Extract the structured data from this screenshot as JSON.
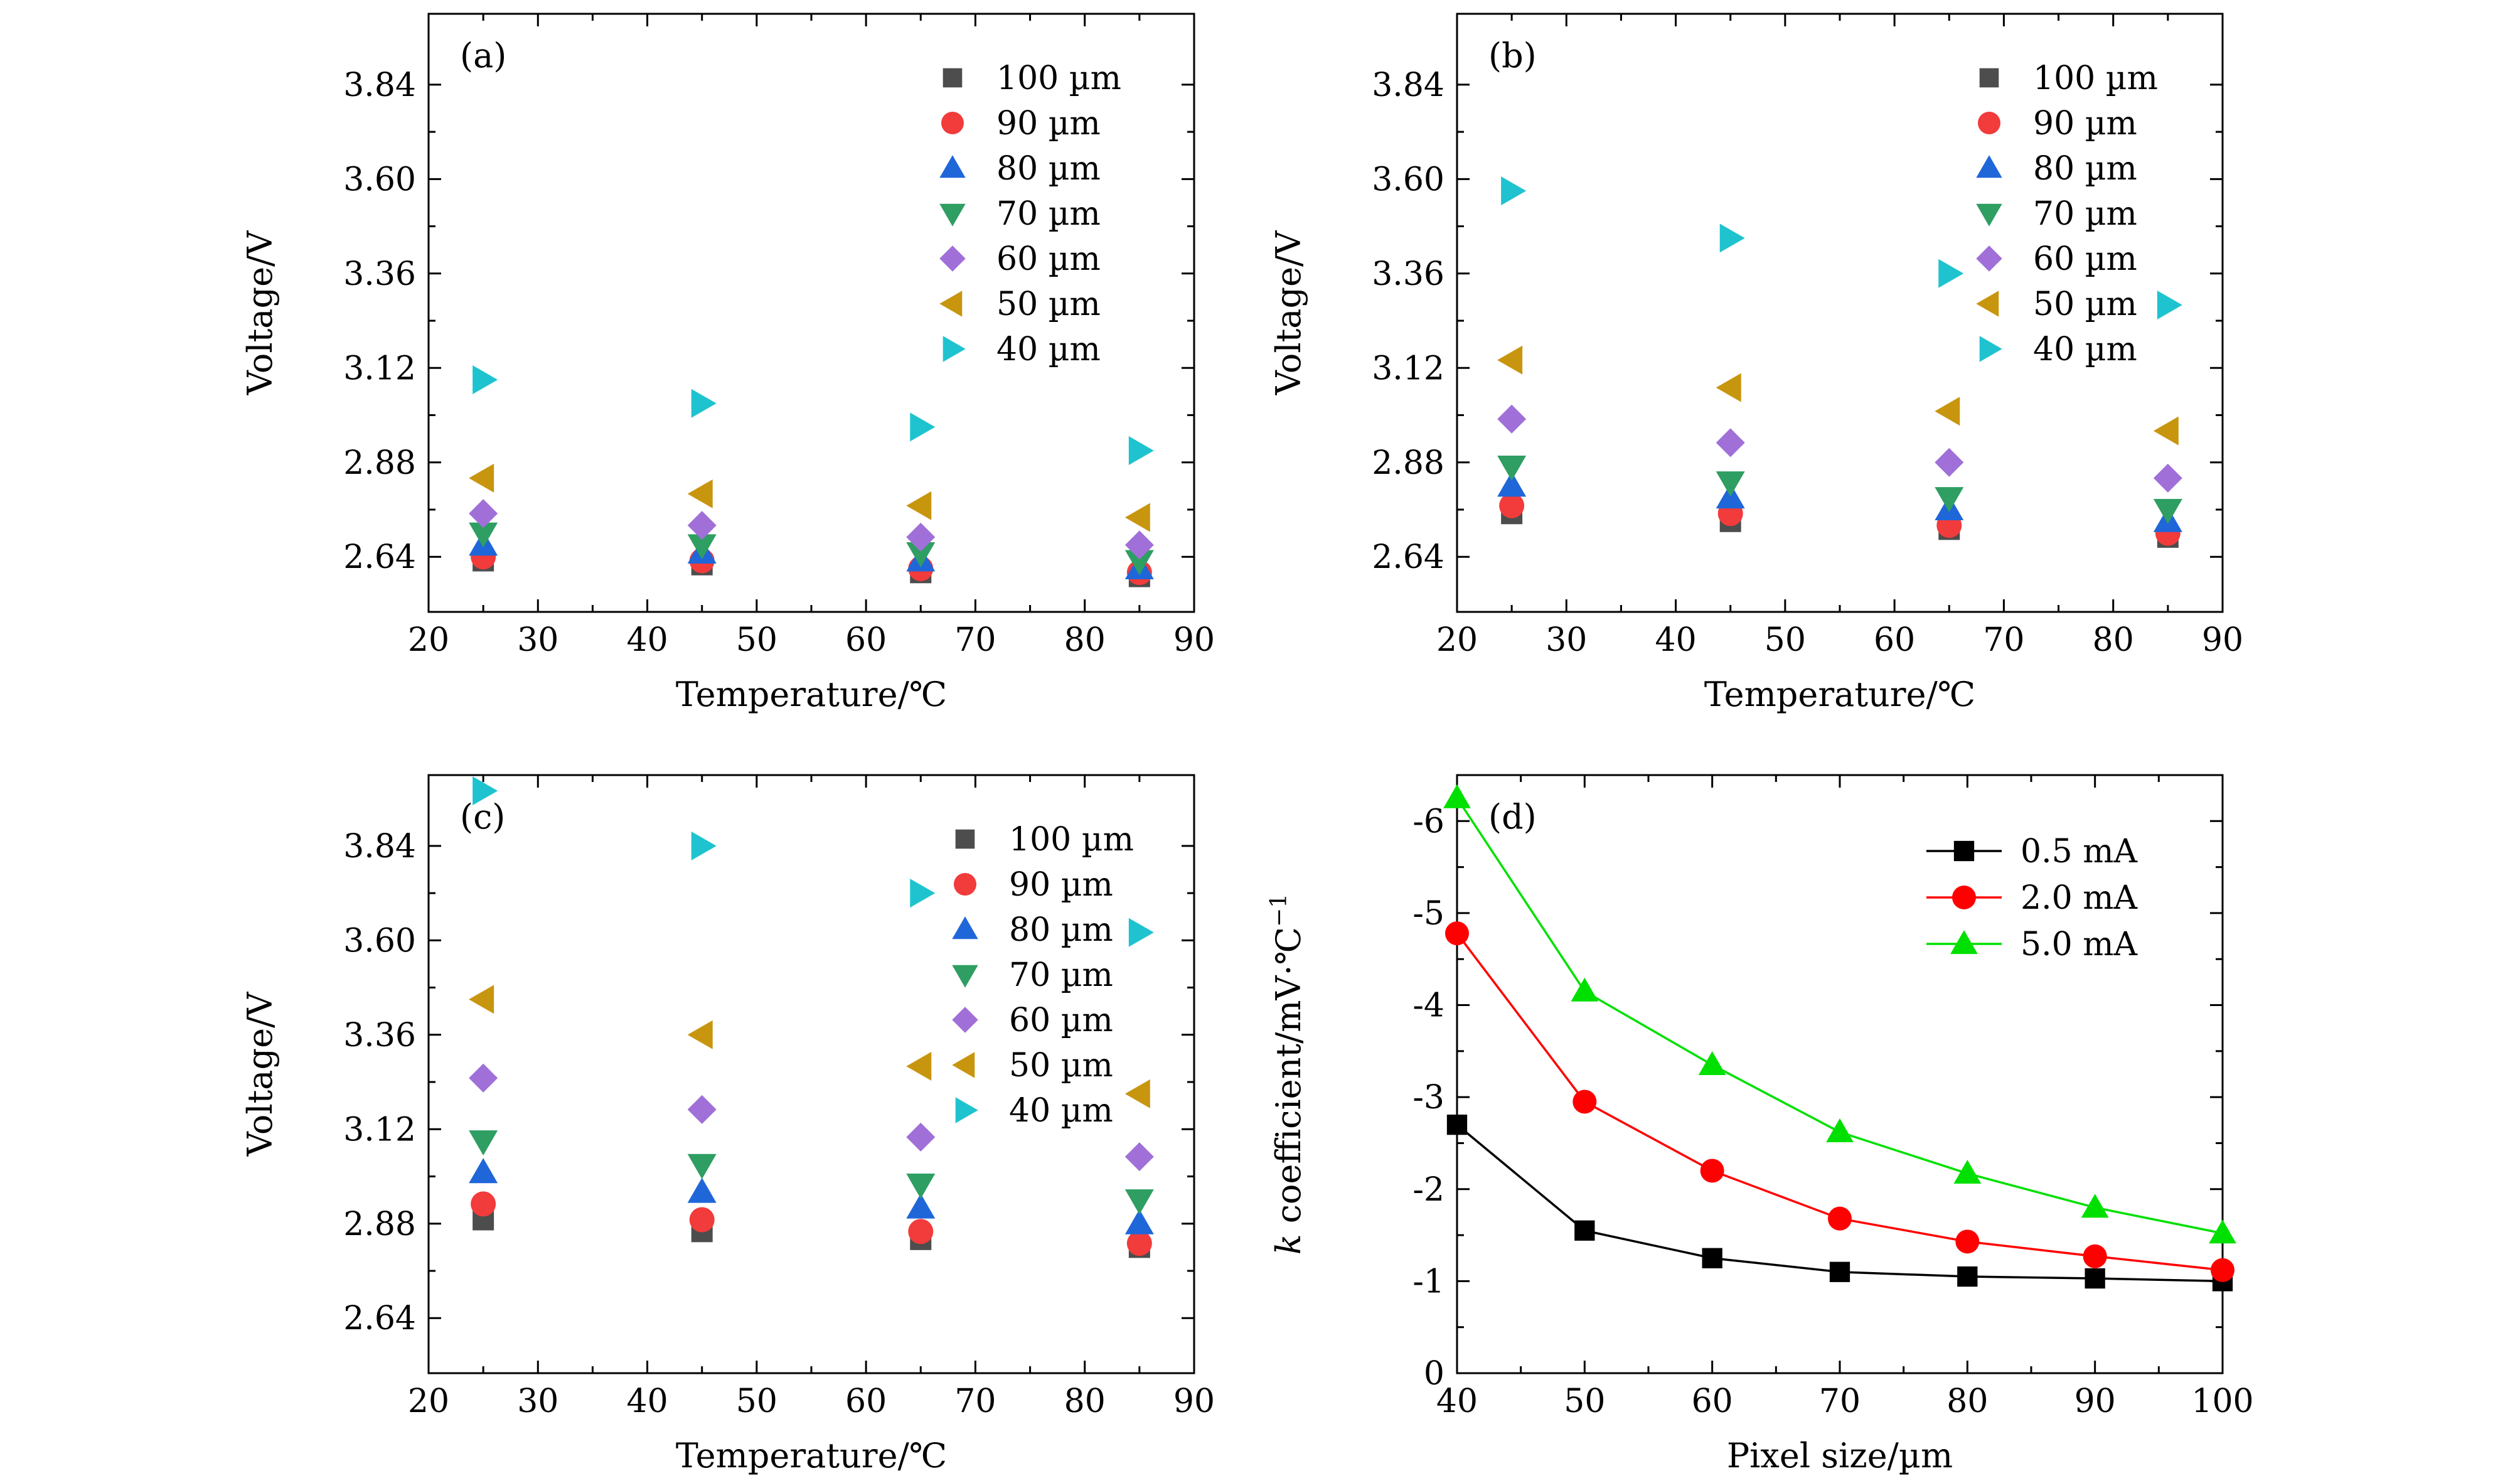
{
  "chart_data": [
    {
      "type": "scatter",
      "panel_label": "(a)",
      "xlabel": "Temperature/℃",
      "ylabel": "Voltage/V",
      "xlim": [
        20,
        90
      ],
      "ylim": [
        2.5,
        4.02
      ],
      "xticks": [
        20,
        30,
        40,
        50,
        60,
        70,
        80,
        90
      ],
      "yticks": [
        2.64,
        2.88,
        3.12,
        3.36,
        3.6,
        3.84
      ],
      "legend_position": "top-right",
      "series": [
        {
          "name": "100 µm",
          "marker": "square",
          "color": "#4d4d4d",
          "x": [
            25,
            45,
            65,
            85
          ],
          "y": [
            2.63,
            2.62,
            2.6,
            2.59
          ]
        },
        {
          "name": "90 µm",
          "marker": "circle",
          "color": "#f23b3b",
          "x": [
            25,
            45,
            65,
            85
          ],
          "y": [
            2.64,
            2.63,
            2.61,
            2.6
          ]
        },
        {
          "name": "80 µm",
          "marker": "triangle-up",
          "color": "#1f66d9",
          "x": [
            25,
            45,
            65,
            85
          ],
          "y": [
            2.67,
            2.65,
            2.63,
            2.61
          ]
        },
        {
          "name": "70 µm",
          "marker": "triangle-down",
          "color": "#2e9e62",
          "x": [
            25,
            45,
            65,
            85
          ],
          "y": [
            2.7,
            2.67,
            2.65,
            2.63
          ]
        },
        {
          "name": "60 µm",
          "marker": "diamond",
          "color": "#a070d8",
          "x": [
            25,
            45,
            65,
            85
          ],
          "y": [
            2.75,
            2.72,
            2.69,
            2.67
          ]
        },
        {
          "name": "50 µm",
          "marker": "triangle-left",
          "color": "#c8950e",
          "x": [
            25,
            45,
            65,
            85
          ],
          "y": [
            2.84,
            2.8,
            2.77,
            2.74
          ]
        },
        {
          "name": "40 µm",
          "marker": "triangle-right",
          "color": "#1fc3cf",
          "x": [
            25,
            45,
            65,
            85
          ],
          "y": [
            3.09,
            3.03,
            2.97,
            2.91
          ]
        }
      ]
    },
    {
      "type": "scatter",
      "panel_label": "(b)",
      "xlabel": "Temperature/℃",
      "ylabel": "Voltage/V",
      "xlim": [
        20,
        90
      ],
      "ylim": [
        2.5,
        4.02
      ],
      "xticks": [
        20,
        30,
        40,
        50,
        60,
        70,
        80,
        90
      ],
      "yticks": [
        2.64,
        2.88,
        3.12,
        3.36,
        3.6,
        3.84
      ],
      "legend_position": "top-right",
      "series": [
        {
          "name": "100 µm",
          "marker": "square",
          "color": "#4d4d4d",
          "x": [
            25,
            45,
            65,
            85
          ],
          "y": [
            2.75,
            2.73,
            2.71,
            2.69
          ]
        },
        {
          "name": "90 µm",
          "marker": "circle",
          "color": "#f23b3b",
          "x": [
            25,
            45,
            65,
            85
          ],
          "y": [
            2.77,
            2.75,
            2.72,
            2.7
          ]
        },
        {
          "name": "80 µm",
          "marker": "triangle-up",
          "color": "#1f66d9",
          "x": [
            25,
            45,
            65,
            85
          ],
          "y": [
            2.82,
            2.79,
            2.76,
            2.73
          ]
        },
        {
          "name": "70 µm",
          "marker": "triangle-down",
          "color": "#2e9e62",
          "x": [
            25,
            45,
            65,
            85
          ],
          "y": [
            2.87,
            2.83,
            2.79,
            2.76
          ]
        },
        {
          "name": "60 µm",
          "marker": "diamond",
          "color": "#a070d8",
          "x": [
            25,
            45,
            65,
            85
          ],
          "y": [
            2.99,
            2.93,
            2.88,
            2.84
          ]
        },
        {
          "name": "50 µm",
          "marker": "triangle-left",
          "color": "#c8950e",
          "x": [
            25,
            45,
            65,
            85
          ],
          "y": [
            3.14,
            3.07,
            3.01,
            2.96
          ]
        },
        {
          "name": "40 µm",
          "marker": "triangle-right",
          "color": "#1fc3cf",
          "x": [
            25,
            45,
            65,
            85
          ],
          "y": [
            3.57,
            3.45,
            3.36,
            3.28
          ]
        }
      ]
    },
    {
      "type": "scatter",
      "panel_label": "(c)",
      "xlabel": "Temperature/℃",
      "ylabel": "Voltage/V",
      "xlim": [
        20,
        90
      ],
      "ylim": [
        2.5,
        4.02
      ],
      "xticks": [
        20,
        30,
        40,
        50,
        60,
        70,
        80,
        90
      ],
      "yticks": [
        2.64,
        2.88,
        3.12,
        3.36,
        3.6,
        3.84
      ],
      "legend_position": "top-right",
      "series": [
        {
          "name": "100 µm",
          "marker": "square",
          "color": "#4d4d4d",
          "x": [
            25,
            45,
            65,
            85
          ],
          "y": [
            2.89,
            2.86,
            2.84,
            2.82
          ]
        },
        {
          "name": "90 µm",
          "marker": "circle",
          "color": "#f23b3b",
          "x": [
            25,
            45,
            65,
            85
          ],
          "y": [
            2.93,
            2.89,
            2.86,
            2.83
          ]
        },
        {
          "name": "80 µm",
          "marker": "triangle-up",
          "color": "#1f66d9",
          "x": [
            25,
            45,
            65,
            85
          ],
          "y": [
            3.01,
            2.96,
            2.92,
            2.88
          ]
        },
        {
          "name": "70 µm",
          "marker": "triangle-down",
          "color": "#2e9e62",
          "x": [
            25,
            45,
            65,
            85
          ],
          "y": [
            3.09,
            3.03,
            2.98,
            2.94
          ]
        },
        {
          "name": "60 µm",
          "marker": "diamond",
          "color": "#a070d8",
          "x": [
            25,
            45,
            65,
            85
          ],
          "y": [
            3.25,
            3.17,
            3.1,
            3.05
          ]
        },
        {
          "name": "50 µm",
          "marker": "triangle-left",
          "color": "#c8950e",
          "x": [
            25,
            45,
            65,
            85
          ],
          "y": [
            3.45,
            3.36,
            3.28,
            3.21
          ]
        },
        {
          "name": "40 µm",
          "marker": "triangle-right",
          "color": "#1fc3cf",
          "x": [
            25,
            45,
            65,
            85
          ],
          "y": [
            3.98,
            3.84,
            3.72,
            3.62
          ]
        }
      ]
    },
    {
      "type": "line",
      "panel_label": "(d)",
      "xlabel": "Pixel size/µm",
      "ylabel_prefix": "k",
      "ylabel_main": " coefficient/mV·℃",
      "ylabel_superscript": "−1",
      "xlim": [
        40,
        100
      ],
      "ylim": [
        0,
        -6.5
      ],
      "xticks": [
        40,
        50,
        60,
        70,
        80,
        90,
        100
      ],
      "yticks": [
        0,
        -1,
        -2,
        -3,
        -4,
        -5,
        -6
      ],
      "legend_position": "top-right",
      "series": [
        {
          "name": "0.5 mA",
          "marker": "square",
          "color": "#000000",
          "x": [
            40,
            50,
            60,
            70,
            80,
            90,
            100
          ],
          "y": [
            -2.7,
            -1.55,
            -1.25,
            -1.1,
            -1.05,
            -1.03,
            -1.0
          ]
        },
        {
          "name": "2.0 mA",
          "marker": "circle",
          "color": "#ff0000",
          "x": [
            40,
            50,
            60,
            70,
            80,
            90,
            100
          ],
          "y": [
            -4.78,
            -2.95,
            -2.2,
            -1.68,
            -1.43,
            -1.27,
            -1.12
          ]
        },
        {
          "name": "5.0 mA",
          "marker": "triangle-up",
          "color": "#00e000",
          "x": [
            40,
            50,
            60,
            70,
            80,
            90,
            100
          ],
          "y": [
            -6.25,
            -4.15,
            -3.35,
            -2.62,
            -2.17,
            -1.8,
            -1.52
          ]
        }
      ]
    }
  ]
}
